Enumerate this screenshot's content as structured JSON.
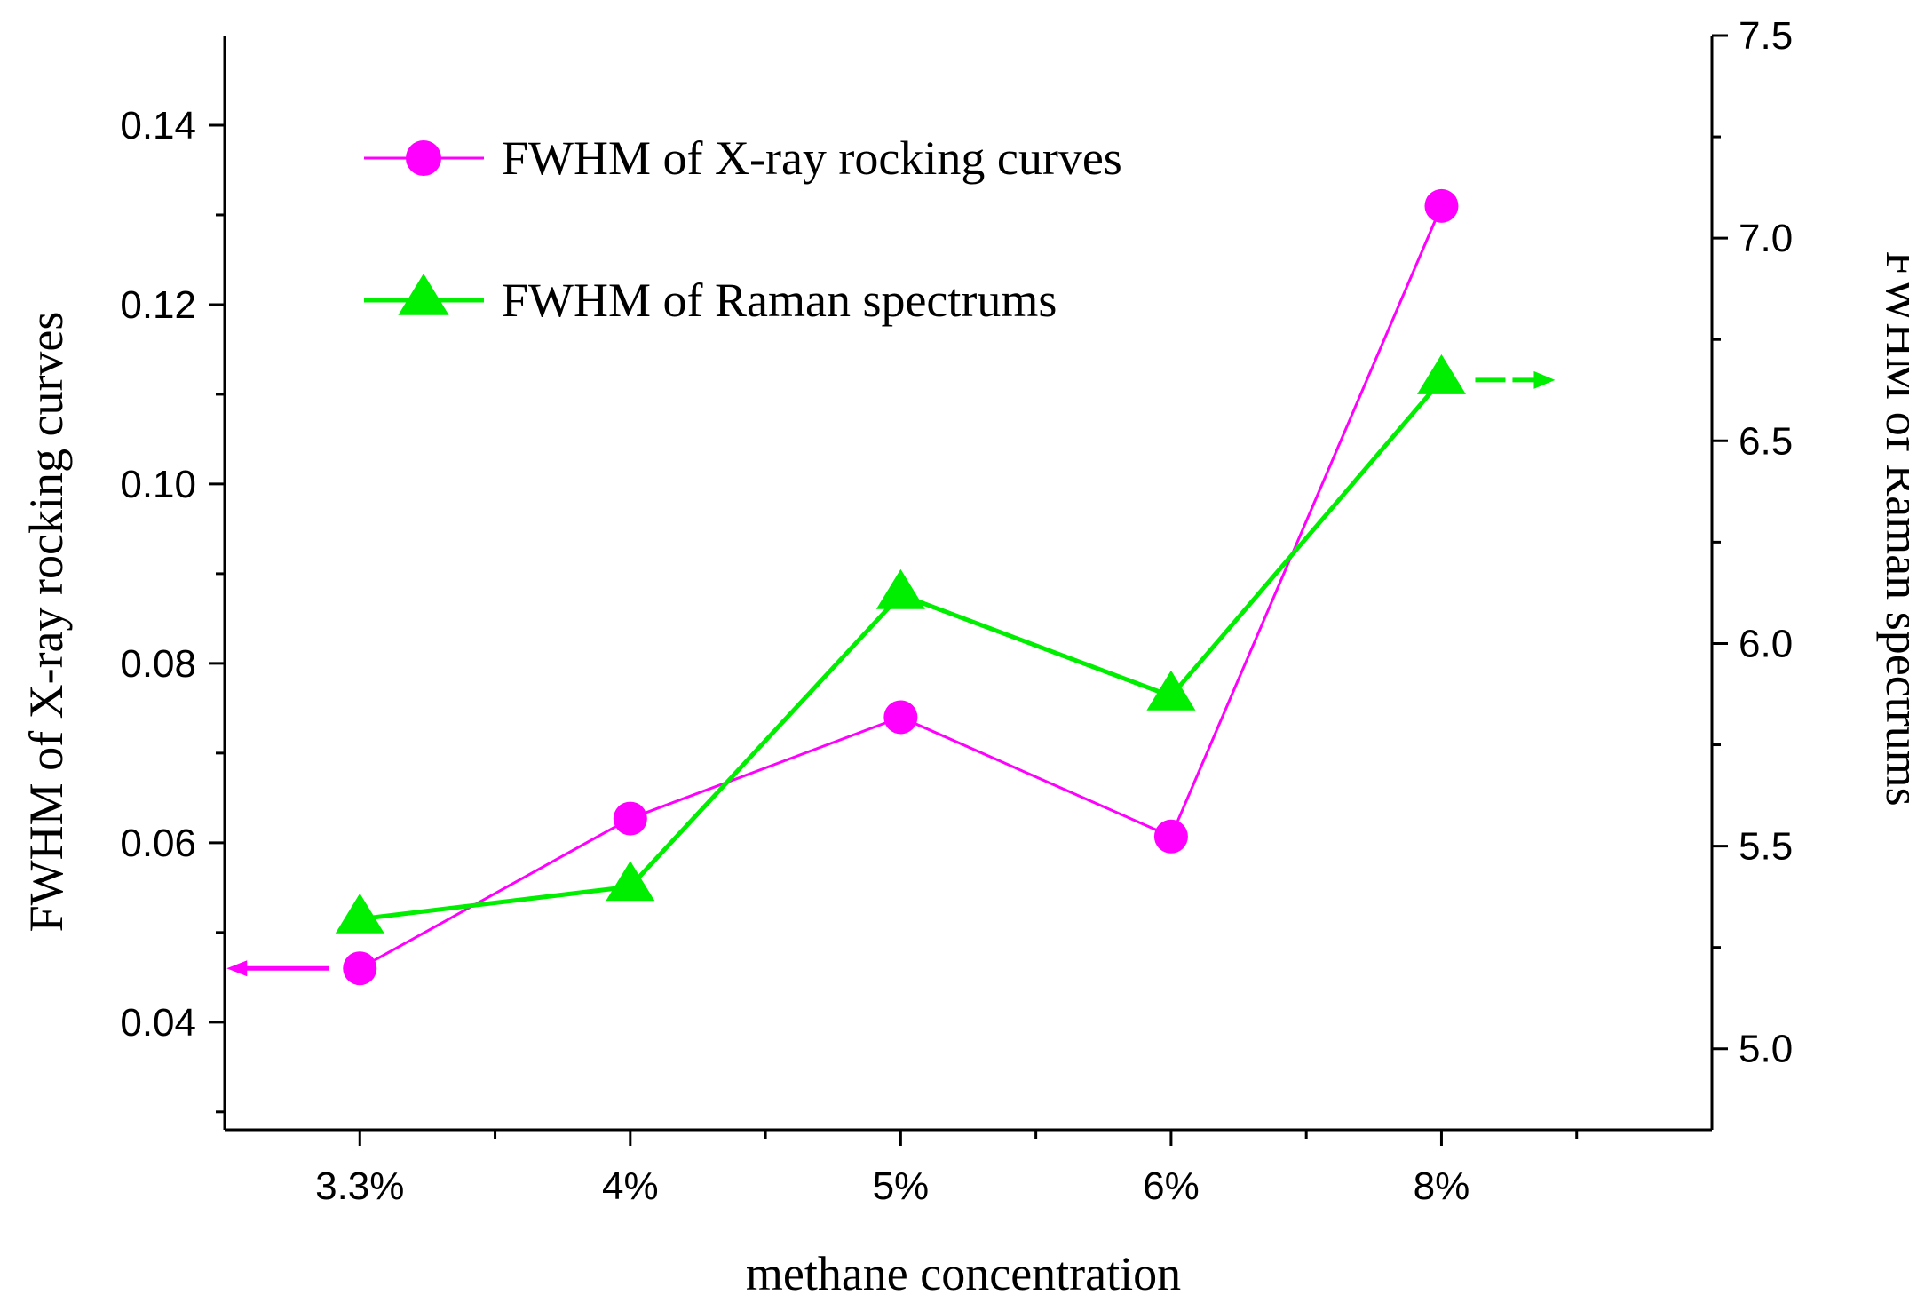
{
  "chart_data": {
    "type": "line",
    "categories": [
      "3.3%",
      "4%",
      "5%",
      "6%",
      "8%"
    ],
    "xlabel": "methane concentration",
    "ylabel_left": "FWHM of X-ray rocking curves",
    "ylabel_right": "FWHM of  Raman spectrums",
    "y_left": {
      "range": [
        0.028,
        0.15
      ],
      "ticks": [
        0.04,
        0.06,
        0.08,
        0.1,
        0.12,
        0.14
      ],
      "tick_labels": [
        "0.04",
        "0.06",
        "0.08",
        "0.10",
        "0.12",
        "0.14"
      ]
    },
    "y_right": {
      "range": [
        4.8,
        7.5
      ],
      "ticks": [
        5.0,
        5.5,
        6.0,
        6.5,
        7.0,
        7.5
      ],
      "tick_labels": [
        "5.0",
        "5.5",
        "6.0",
        "6.5",
        "7.0",
        "7.5"
      ]
    },
    "series": [
      {
        "name": "FWHM of X-ray rocking curves",
        "axis": "left",
        "marker": "circle",
        "color": "#ff00ff",
        "values": [
          0.046,
          0.0627,
          0.074,
          0.0607,
          0.131
        ]
      },
      {
        "name": "FWHM of Raman spectrums",
        "axis": "right",
        "marker": "triangle",
        "color": "#00ee00",
        "values": [
          5.32,
          5.4,
          6.12,
          5.87,
          6.65
        ]
      }
    ],
    "legend": "top-left",
    "grid": false
  }
}
